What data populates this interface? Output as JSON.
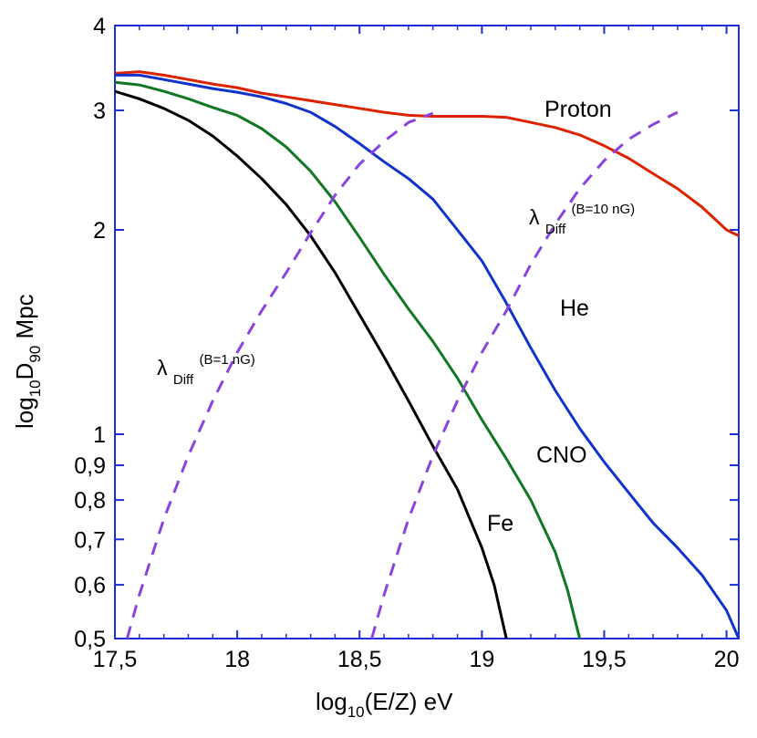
{
  "chart_data": {
    "type": "line",
    "title": "",
    "xlabel": {
      "base": "log",
      "sub": "10",
      "rest": "(E/Z) eV"
    },
    "ylabel": {
      "base": "log",
      "sub1": "10",
      "mid": "D",
      "sub2": "90",
      "rest": " Mpc"
    },
    "xlim": [
      17.5,
      20.05
    ],
    "ylim": [
      0.5,
      4
    ],
    "yscale": "log",
    "x_ticks": [
      {
        "value": 17.5,
        "label": "17,5"
      },
      {
        "value": 18.0,
        "label": "18"
      },
      {
        "value": 18.5,
        "label": "18,5"
      },
      {
        "value": 19.0,
        "label": "19"
      },
      {
        "value": 19.5,
        "label": "19,5"
      },
      {
        "value": 20.0,
        "label": "20"
      }
    ],
    "y_ticks": [
      {
        "value": 0.5,
        "label": "0,5"
      },
      {
        "value": 0.6,
        "label": "0,6"
      },
      {
        "value": 0.7,
        "label": "0,7"
      },
      {
        "value": 0.8,
        "label": "0,8"
      },
      {
        "value": 0.9,
        "label": "0,9"
      },
      {
        "value": 1,
        "label": "1"
      },
      {
        "value": 2,
        "label": "2"
      },
      {
        "value": 3,
        "label": "3"
      },
      {
        "value": 4,
        "label": "4"
      }
    ],
    "series": [
      {
        "name": "Proton",
        "color": "#dd2200",
        "dashed": false,
        "x": [
          17.5,
          17.6,
          17.7,
          17.8,
          17.9,
          18.0,
          18.1,
          18.2,
          18.3,
          18.4,
          18.5,
          18.6,
          18.7,
          18.8,
          18.9,
          19.0,
          19.1,
          19.2,
          19.3,
          19.4,
          19.5,
          19.6,
          19.7,
          19.8,
          19.9,
          20.0,
          20.05
        ],
        "y": [
          3.4,
          3.42,
          3.38,
          3.33,
          3.28,
          3.24,
          3.18,
          3.14,
          3.1,
          3.06,
          3.02,
          2.98,
          2.95,
          2.94,
          2.94,
          2.94,
          2.93,
          2.88,
          2.83,
          2.76,
          2.66,
          2.55,
          2.42,
          2.3,
          2.16,
          2.0,
          1.96
        ]
      },
      {
        "name": "He",
        "color": "#1133cc",
        "dashed": false,
        "x": [
          17.5,
          17.6,
          17.7,
          17.8,
          17.9,
          18.0,
          18.1,
          18.2,
          18.3,
          18.4,
          18.5,
          18.6,
          18.7,
          18.8,
          18.9,
          19.0,
          19.1,
          19.2,
          19.3,
          19.4,
          19.5,
          19.6,
          19.7,
          19.8,
          19.9,
          20.0,
          20.05
        ],
        "y": [
          3.38,
          3.38,
          3.33,
          3.28,
          3.23,
          3.19,
          3.14,
          3.07,
          2.98,
          2.84,
          2.68,
          2.52,
          2.38,
          2.22,
          2.0,
          1.8,
          1.56,
          1.34,
          1.16,
          1.02,
          0.91,
          0.82,
          0.74,
          0.68,
          0.62,
          0.55,
          0.5
        ]
      },
      {
        "name": "CNO",
        "color": "#117722",
        "dashed": false,
        "x": [
          17.5,
          17.6,
          17.7,
          17.8,
          17.9,
          18.0,
          18.1,
          18.2,
          18.3,
          18.4,
          18.5,
          18.6,
          18.7,
          18.8,
          18.9,
          19.0,
          19.1,
          19.2,
          19.3,
          19.35,
          19.4
        ],
        "y": [
          3.3,
          3.27,
          3.2,
          3.12,
          3.03,
          2.95,
          2.82,
          2.65,
          2.44,
          2.2,
          1.95,
          1.72,
          1.53,
          1.37,
          1.21,
          1.05,
          0.92,
          0.8,
          0.67,
          0.59,
          0.5
        ]
      },
      {
        "name": "Fe",
        "color": "#000000",
        "dashed": false,
        "x": [
          17.5,
          17.6,
          17.7,
          17.8,
          17.9,
          18.0,
          18.1,
          18.2,
          18.3,
          18.4,
          18.5,
          18.6,
          18.7,
          18.8,
          18.9,
          19.0,
          19.05,
          19.1
        ],
        "y": [
          3.2,
          3.12,
          3.02,
          2.9,
          2.75,
          2.57,
          2.38,
          2.18,
          1.96,
          1.73,
          1.5,
          1.3,
          1.12,
          0.96,
          0.83,
          0.68,
          0.6,
          0.5
        ]
      },
      {
        "name": "lambda-diff-1nG",
        "color": "#8844dd",
        "dashed": true,
        "x": [
          17.55,
          17.6,
          17.7,
          17.8,
          17.9,
          18.0,
          18.1,
          18.2,
          18.3,
          18.4,
          18.5,
          18.6,
          18.7,
          18.8
        ],
        "y": [
          0.5,
          0.58,
          0.75,
          0.93,
          1.12,
          1.32,
          1.52,
          1.73,
          1.98,
          2.25,
          2.5,
          2.7,
          2.88,
          2.97
        ]
      },
      {
        "name": "lambda-diff-10nG",
        "color": "#8844dd",
        "dashed": true,
        "x": [
          18.55,
          18.6,
          18.7,
          18.8,
          18.9,
          19.0,
          19.1,
          19.2,
          19.3,
          19.4,
          19.5,
          19.6,
          19.7,
          19.8
        ],
        "y": [
          0.5,
          0.58,
          0.75,
          0.93,
          1.12,
          1.32,
          1.52,
          1.78,
          2.04,
          2.3,
          2.53,
          2.72,
          2.86,
          2.98
        ]
      }
    ],
    "labels": {
      "proton": "Proton",
      "he": "He",
      "cno": "CNO",
      "fe": "Fe",
      "lambda_symbol": "λ",
      "lambda_sub": "Diff",
      "b1": "(B=1 nG)",
      "b10": "(B=10 nG)"
    }
  }
}
